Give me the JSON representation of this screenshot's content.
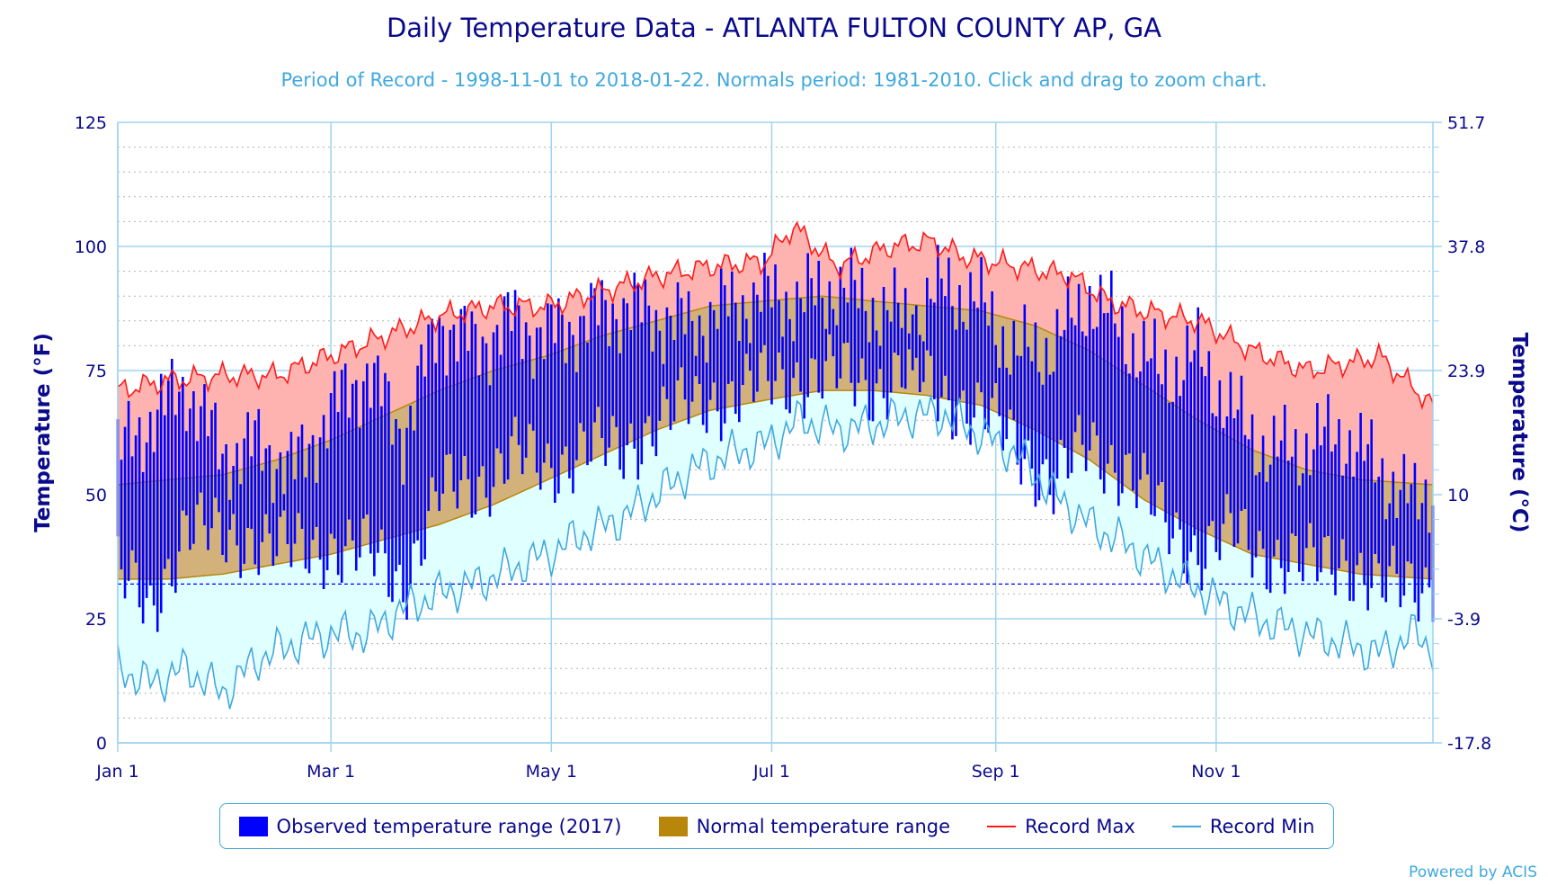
{
  "chart_data": {
    "type": "area",
    "title": "Daily Temperature Data - ATLANTA FULTON COUNTY AP, GA",
    "subtitle": "Period of Record - 1998-11-01 to 2018-01-22. Normals period: 1981-2010. Click and drag to zoom chart.",
    "ylabel": "Temperature (°F)",
    "y2label": "Temperature (°C)",
    "ylim": [
      0,
      125
    ],
    "y_ticks": [
      0,
      25,
      50,
      75,
      100,
      125
    ],
    "y2_ticks": [
      "-17.8",
      "-3.9",
      "10",
      "23.9",
      "37.8",
      "51.7"
    ],
    "x_ticks": [
      {
        "label": "Jan 1",
        "day": 1
      },
      {
        "label": "Mar 1",
        "day": 60
      },
      {
        "label": "May 1",
        "day": 121
      },
      {
        "label": "Jul 1",
        "day": 182
      },
      {
        "label": "Sep 1",
        "day": 244
      },
      {
        "label": "Nov 1",
        "day": 305
      }
    ],
    "x_unit": "day of year",
    "freezing_line": 32,
    "grid": true,
    "legend_position": "bottom",
    "series": [
      {
        "name": "Record Max",
        "color": "#ff1a1a",
        "x": [
          1,
          15,
          30,
          45,
          60,
          75,
          90,
          105,
          120,
          135,
          150,
          165,
          180,
          188,
          200,
          215,
          226,
          235,
          250,
          265,
          275,
          285,
          300,
          315,
          330,
          345,
          350,
          365
        ],
        "values": [
          71,
          73,
          74,
          74,
          78,
          82,
          86,
          88,
          88,
          91,
          94,
          96,
          97,
          104,
          96,
          100,
          101,
          98,
          96,
          94,
          89,
          87,
          85,
          79,
          75,
          77,
          78,
          68
        ]
      },
      {
        "name": "Record Min",
        "color": "#3fa9de",
        "x": [
          1,
          10,
          20,
          30,
          40,
          50,
          60,
          70,
          80,
          90,
          100,
          110,
          120,
          130,
          140,
          150,
          160,
          170,
          180,
          190,
          200,
          210,
          220,
          230,
          240,
          250,
          260,
          270,
          280,
          290,
          300,
          310,
          320,
          330,
          340,
          350,
          360,
          365
        ],
        "values": [
          15,
          12,
          15,
          10,
          17,
          20,
          22,
          22,
          27,
          30,
          32,
          35,
          38,
          42,
          45,
          50,
          55,
          58,
          60,
          65,
          63,
          64,
          66,
          66,
          62,
          58,
          50,
          44,
          40,
          35,
          31,
          27,
          24,
          22,
          20,
          18,
          22,
          19
        ]
      },
      {
        "name": "Normal temperature range",
        "color": "#b8860b",
        "x": [
          1,
          15,
          30,
          45,
          60,
          75,
          90,
          105,
          120,
          135,
          150,
          165,
          180,
          196,
          210,
          225,
          240,
          255,
          270,
          285,
          300,
          315,
          330,
          345,
          365
        ],
        "high": [
          52,
          53,
          54,
          57,
          61,
          66,
          71,
          75,
          78,
          82,
          85,
          88,
          89,
          90,
          89,
          88,
          87,
          84,
          79,
          72,
          65,
          59,
          55,
          53,
          52
        ],
        "low": [
          33,
          33,
          34,
          36,
          38,
          41,
          44,
          48,
          53,
          58,
          63,
          67,
          69,
          71,
          71,
          70,
          68,
          63,
          57,
          49,
          43,
          38,
          36,
          34,
          33
        ]
      },
      {
        "name": "Observed temperature range (2017)",
        "color": "#0000ff",
        "x": [
          1,
          10,
          20,
          30,
          40,
          50,
          60,
          70,
          80,
          90,
          100,
          110,
          120,
          130,
          140,
          150,
          160,
          170,
          180,
          190,
          200,
          210,
          220,
          230,
          240,
          250,
          260,
          270,
          280,
          290,
          300,
          310,
          320,
          330,
          340,
          350,
          360,
          365
        ],
        "high": [
          58,
          65,
          72,
          58,
          60,
          55,
          67,
          75,
          62,
          85,
          80,
          85,
          82,
          85,
          88,
          86,
          84,
          88,
          90,
          89,
          92,
          88,
          85,
          92,
          88,
          78,
          80,
          90,
          82,
          74,
          78,
          66,
          58,
          60,
          62,
          55,
          48,
          52
        ],
        "low": [
          35,
          25,
          45,
          40,
          42,
          38,
          40,
          38,
          32,
          50,
          52,
          58,
          55,
          60,
          58,
          65,
          68,
          70,
          72,
          74,
          74,
          72,
          75,
          70,
          66,
          60,
          52,
          60,
          55,
          45,
          38,
          42,
          38,
          35,
          38,
          30,
          33,
          32
        ]
      }
    ]
  },
  "legend": {
    "observed": "Observed temperature range (2017)",
    "normal": "Normal temperature range",
    "record_max": "Record Max",
    "record_min": "Record Min"
  },
  "credits": "Powered by ACIS",
  "colors": {
    "record_band_upper": "#ffb3b0",
    "record_band_lower": "#e0ffff",
    "normal_band": "#d2b27a",
    "axis_text": "#0a0a8c",
    "grid": "#9fd3ef"
  }
}
